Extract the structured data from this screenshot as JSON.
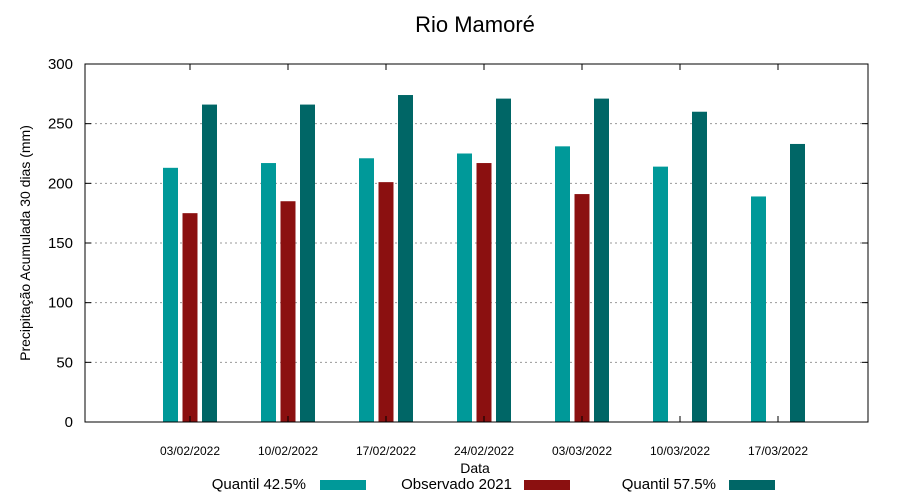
{
  "chart_data": {
    "type": "bar",
    "title": "Rio Mamoré",
    "xlabel": "Data",
    "ylabel": "Precipitação Acumulada 30 dias (mm)",
    "ylim": [
      0,
      300
    ],
    "yticks": [
      0,
      50,
      100,
      150,
      200,
      250,
      300
    ],
    "grid": true,
    "legend_position": "bottom",
    "categories": [
      "03/02/2022",
      "10/02/2022",
      "17/02/2022",
      "24/02/2022",
      "03/03/2022",
      "10/03/2022",
      "17/03/2022"
    ],
    "series": [
      {
        "name": "Quantil 42.5%",
        "color": "#009999",
        "values": [
          213,
          217,
          221,
          225,
          231,
          214,
          189
        ]
      },
      {
        "name": "Observado 2021",
        "color": "#8b1010",
        "values": [
          175,
          185,
          201,
          217,
          191,
          null,
          null
        ]
      },
      {
        "name": "Quantil 57.5%",
        "color": "#006666",
        "values": [
          266,
          266,
          274,
          271,
          271,
          260,
          233
        ]
      }
    ]
  }
}
